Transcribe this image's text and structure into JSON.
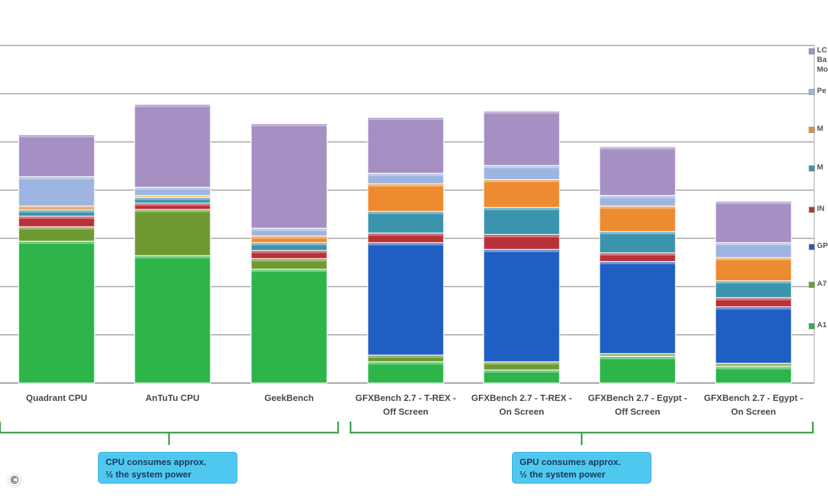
{
  "chart_data": {
    "type": "bar",
    "stacked": true,
    "grid": true,
    "legend_position": "right",
    "ylim": [
      0,
      7
    ],
    "categories": [
      "Quadrant CPU",
      "AnTuTu CPU",
      "GeekBench",
      "GFXBench 2.7 - T-REX - Off Screen",
      "GFXBench 2.7 - T-REX - On Screen",
      "GFXBench 2.7 - Egypt - Off Screen",
      "GFXBench 2.7 - Egypt - On Screen"
    ],
    "series": [
      {
        "name": "A1",
        "color": "#2db54a",
        "values": [
          2.94,
          2.64,
          2.36,
          0.44,
          0.27,
          0.55,
          0.34
        ]
      },
      {
        "name": "A7",
        "color": "#6f9a31",
        "values": [
          0.3,
          0.96,
          0.22,
          0.14,
          0.17,
          0.06,
          0.07
        ]
      },
      {
        "name": "GPU",
        "color": "#1f5ec2",
        "values": [
          0.0,
          0.0,
          0.0,
          2.33,
          2.33,
          1.91,
          1.17
        ]
      },
      {
        "name": "INT",
        "color": "#b93239",
        "values": [
          0.22,
          0.13,
          0.17,
          0.2,
          0.31,
          0.18,
          0.19
        ]
      },
      {
        "name": "MIF",
        "color": "#3b94ad",
        "values": [
          0.13,
          0.12,
          0.16,
          0.45,
          0.56,
          0.44,
          0.35
        ]
      },
      {
        "name": "MFC",
        "color": "#ee8a30",
        "values": [
          0.08,
          0.04,
          0.14,
          0.57,
          0.58,
          0.53,
          0.48
        ]
      },
      {
        "name": "Peri",
        "color": "#9db5e0",
        "values": [
          0.61,
          0.17,
          0.16,
          0.22,
          0.29,
          0.22,
          0.31
        ]
      },
      {
        "name": "LCD Backlight Module",
        "color": "#a58fc3",
        "values": [
          0.87,
          1.72,
          2.17,
          1.16,
          1.13,
          1.01,
          0.86
        ]
      }
    ],
    "legend_labels": [
      "LC\nBa\nMo",
      "Pe",
      "M",
      "M",
      "IN",
      "GP",
      "A7",
      "A1"
    ],
    "legend_colors": [
      "#a58fc3",
      "#9db5e0",
      "#ee8a30",
      "#3b94ad",
      "#b93239",
      "#1f5ec2",
      "#6f9a31",
      "#2db54a"
    ],
    "axis_color": "#a0a0a0",
    "bracket_color": "#3f9f4e"
  },
  "callouts": {
    "cpu": {
      "line1": "CPU consumes approx.",
      "line2": "½ the system power"
    },
    "gpu": {
      "line1": "GPU consumes approx.",
      "line2": "½ the system power"
    }
  },
  "copyright_symbol": "©"
}
